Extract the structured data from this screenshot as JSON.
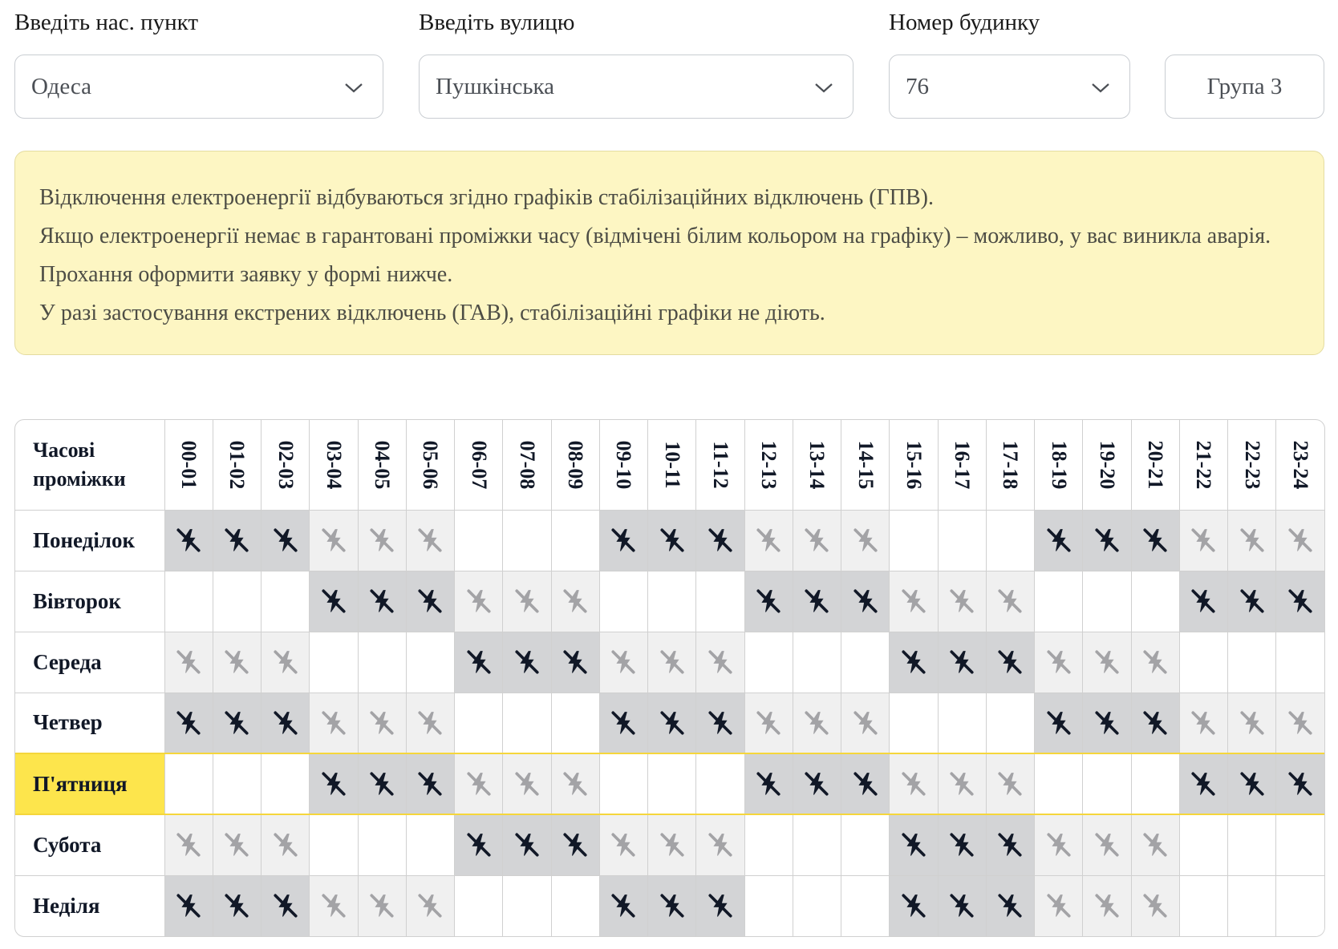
{
  "filters": {
    "settlement": {
      "label": "Введіть нас. пункт",
      "value": "Одеса"
    },
    "street": {
      "label": "Введіть вулицю",
      "value": "Пушкінська"
    },
    "house": {
      "label": "Номер будинку",
      "value": "76"
    },
    "group": {
      "value": "Група 3"
    }
  },
  "notice": {
    "lines": [
      "Відключення електроенергії відбуваються згідно графіків стабілізаційних відключень (ГПВ).",
      "Якщо електроенергії немає в гарантовані проміжки часу (відмічені білим кольором на графіку) – можливо, у вас виникла аварія. Прохання оформити заявку у формі нижче.",
      "У разі застосування екстрених відключень (ГАВ), стабілізаційні графіки не діють."
    ]
  },
  "schedule": {
    "header_line1": "Часові",
    "header_line2": "проміжки",
    "hours": [
      "00-01",
      "01-02",
      "02-03",
      "03-04",
      "04-05",
      "05-06",
      "06-07",
      "07-08",
      "08-09",
      "09-10",
      "10-11",
      "11-12",
      "12-13",
      "13-14",
      "14-15",
      "15-16",
      "16-17",
      "17-18",
      "18-19",
      "19-20",
      "20-21",
      "21-22",
      "22-23",
      "23-24"
    ],
    "legend_states": {
      "on": "power",
      "maybe": "possible-outage",
      "off": "outage"
    },
    "colors": {
      "off": "#d3d4d6",
      "maybe": "#f0f0f0",
      "on": "#ffffff",
      "today": "#fde54c"
    },
    "days": [
      {
        "name": "Понеділок",
        "today": false,
        "slots": [
          "off",
          "off",
          "off",
          "maybe",
          "maybe",
          "maybe",
          "on",
          "on",
          "on",
          "off",
          "off",
          "off",
          "maybe",
          "maybe",
          "maybe",
          "on",
          "on",
          "on",
          "off",
          "off",
          "off",
          "maybe",
          "maybe",
          "maybe"
        ]
      },
      {
        "name": "Вівторок",
        "today": false,
        "slots": [
          "on",
          "on",
          "on",
          "off",
          "off",
          "off",
          "maybe",
          "maybe",
          "maybe",
          "on",
          "on",
          "on",
          "off",
          "off",
          "off",
          "maybe",
          "maybe",
          "maybe",
          "on",
          "on",
          "on",
          "off",
          "off",
          "off"
        ]
      },
      {
        "name": "Середа",
        "today": false,
        "slots": [
          "maybe",
          "maybe",
          "maybe",
          "on",
          "on",
          "on",
          "off",
          "off",
          "off",
          "maybe",
          "maybe",
          "maybe",
          "on",
          "on",
          "on",
          "off",
          "off",
          "off",
          "maybe",
          "maybe",
          "maybe",
          "on",
          "on",
          "on"
        ]
      },
      {
        "name": "Четвер",
        "today": false,
        "slots": [
          "off",
          "off",
          "off",
          "maybe",
          "maybe",
          "maybe",
          "on",
          "on",
          "on",
          "off",
          "off",
          "off",
          "maybe",
          "maybe",
          "maybe",
          "on",
          "on",
          "on",
          "off",
          "off",
          "off",
          "maybe",
          "maybe",
          "maybe"
        ]
      },
      {
        "name": "П'ятниця",
        "today": true,
        "slots": [
          "on",
          "on",
          "on",
          "off",
          "off",
          "off",
          "maybe",
          "maybe",
          "maybe",
          "on",
          "on",
          "on",
          "off",
          "off",
          "off",
          "maybe",
          "maybe",
          "maybe",
          "on",
          "on",
          "on",
          "off",
          "off",
          "off"
        ]
      },
      {
        "name": "Субота",
        "today": false,
        "slots": [
          "maybe",
          "maybe",
          "maybe",
          "on",
          "on",
          "on",
          "off",
          "off",
          "off",
          "maybe",
          "maybe",
          "maybe",
          "on",
          "on",
          "on",
          "off",
          "off",
          "off",
          "maybe",
          "maybe",
          "maybe",
          "on",
          "on",
          "on"
        ]
      },
      {
        "name": "Неділя",
        "today": false,
        "slots": [
          "off",
          "off",
          "off",
          "maybe",
          "maybe",
          "maybe",
          "on",
          "on",
          "on",
          "off",
          "off",
          "off",
          "on",
          "on",
          "on",
          "off",
          "off",
          "off",
          "maybe",
          "maybe",
          "maybe",
          "on",
          "on",
          "on"
        ]
      }
    ]
  }
}
